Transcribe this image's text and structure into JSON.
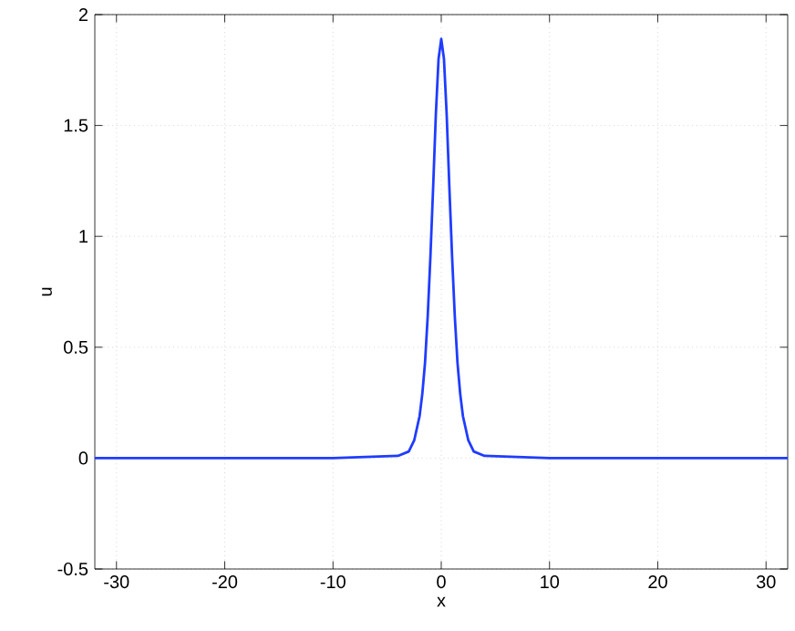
{
  "chart_data": {
    "type": "line",
    "xlabel": "x",
    "ylabel": "u",
    "x": [
      -32,
      -10,
      -4,
      -3,
      -2.5,
      -2,
      -1.75,
      -1.5,
      -1.25,
      -1,
      -0.75,
      -0.5,
      -0.25,
      0,
      0.25,
      0.5,
      0.75,
      1,
      1.25,
      1.5,
      1.75,
      2,
      2.5,
      3,
      4,
      10,
      32
    ],
    "series": [
      {
        "color": "#1f3cff",
        "values": [
          0,
          0,
          0.01,
          0.03,
          0.08,
          0.19,
          0.29,
          0.43,
          0.64,
          0.91,
          1.22,
          1.55,
          1.8,
          1.89,
          1.8,
          1.55,
          1.22,
          0.91,
          0.64,
          0.43,
          0.29,
          0.19,
          0.08,
          0.03,
          0.01,
          0,
          0
        ]
      }
    ],
    "xlim": [
      -32,
      32
    ],
    "ylim": [
      -0.5,
      2
    ],
    "xticks": [
      -30,
      -20,
      -10,
      0,
      10,
      20,
      30
    ],
    "yticks": [
      -0.5,
      0,
      0.5,
      1,
      1.5,
      2
    ],
    "grid": true,
    "line_style": "solid"
  }
}
